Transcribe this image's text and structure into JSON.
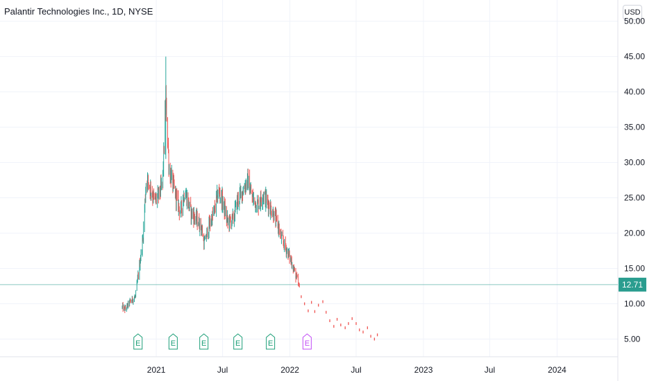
{
  "header": {
    "title": "Palantir Technologies Inc., 1D, NYSE",
    "currency_button": "USD"
  },
  "colors": {
    "up": "#26a69a",
    "down": "#ef5350",
    "earnings_past": "#1b9e77",
    "earnings_future": "#c24cf6",
    "last_price_bg": "#2a9d8f",
    "grid": "#f0f3fa"
  },
  "last_price": {
    "label": "12.71",
    "value": 12.71
  },
  "earnings_markers": {
    "label": "E",
    "past": [
      "2020-11-12",
      "2021-02-16",
      "2021-05-11",
      "2021-08-12",
      "2021-11-09"
    ],
    "future": [
      "2022-02-17"
    ]
  },
  "chart_data": {
    "type": "candlestick",
    "title": "Palantir Technologies Inc., 1D, NYSE",
    "ylim": [
      2.5,
      53
    ],
    "y_ticks": [
      5,
      10,
      15,
      20,
      25,
      30,
      35,
      40,
      45,
      50
    ],
    "y_tick_labels": [
      "5.00",
      "10.00",
      "15.00",
      "20.00",
      "25.00",
      "30.00",
      "35.00",
      "40.00",
      "45.00",
      "50.00"
    ],
    "x_range": [
      "2019-11-01",
      "2024-06-15"
    ],
    "x_ticks": [
      {
        "date": "2021-01-01",
        "label": "2021"
      },
      {
        "date": "2021-07-01",
        "label": "Jul"
      },
      {
        "date": "2022-01-01",
        "label": "2022"
      },
      {
        "date": "2022-07-01",
        "label": "Jul"
      },
      {
        "date": "2023-01-01",
        "label": "2023"
      },
      {
        "date": "2023-07-01",
        "label": "Jul"
      },
      {
        "date": "2024-01-01",
        "label": "2024"
      }
    ],
    "grid": true,
    "projection": {
      "color": "down",
      "style": "dotted",
      "points": [
        [
          "2022-02-01",
          11.0
        ],
        [
          "2022-02-10",
          10.0
        ],
        [
          "2022-02-20",
          9.0
        ],
        [
          "2022-03-01",
          10.2
        ],
        [
          "2022-03-10",
          8.9
        ],
        [
          "2022-03-20",
          9.8
        ],
        [
          "2022-04-01",
          10.3
        ],
        [
          "2022-04-10",
          8.8
        ],
        [
          "2022-04-20",
          7.6
        ],
        [
          "2022-05-01",
          6.8
        ],
        [
          "2022-05-10",
          7.8
        ],
        [
          "2022-05-20",
          7.0
        ],
        [
          "2022-06-01",
          6.6
        ],
        [
          "2022-06-10",
          7.2
        ],
        [
          "2022-06-20",
          7.9
        ],
        [
          "2022-07-01",
          7.2
        ],
        [
          "2022-07-10",
          6.3
        ],
        [
          "2022-07-20",
          6.0
        ],
        [
          "2022-08-01",
          6.6
        ],
        [
          "2022-08-10",
          5.4
        ],
        [
          "2022-08-20",
          5.0
        ],
        [
          "2022-08-28",
          5.6
        ]
      ]
    },
    "waypoints": [
      [
        "2020-09-30",
        9.5
      ],
      [
        "2020-10-08",
        9.2
      ],
      [
        "2020-10-20",
        10.2
      ],
      [
        "2020-11-05",
        11.0
      ],
      [
        "2020-11-15",
        15.0
      ],
      [
        "2020-11-25",
        19.0
      ],
      [
        "2020-12-05",
        28.0
      ],
      [
        "2020-12-15",
        26.5
      ],
      [
        "2020-12-28",
        24.5
      ],
      [
        "2021-01-08",
        25.5
      ],
      [
        "2021-01-18",
        27.0
      ],
      [
        "2021-01-27",
        39.0
      ],
      [
        "2021-02-05",
        29.0
      ],
      [
        "2021-02-15",
        27.0
      ],
      [
        "2021-02-25",
        25.0
      ],
      [
        "2021-03-08",
        23.0
      ],
      [
        "2021-03-20",
        26.0
      ],
      [
        "2021-04-05",
        23.0
      ],
      [
        "2021-04-20",
        22.0
      ],
      [
        "2021-05-03",
        21.0
      ],
      [
        "2021-05-12",
        18.5
      ],
      [
        "2021-05-25",
        21.0
      ],
      [
        "2021-06-08",
        23.0
      ],
      [
        "2021-06-20",
        26.0
      ],
      [
        "2021-07-01",
        24.5
      ],
      [
        "2021-07-15",
        21.5
      ],
      [
        "2021-07-30",
        22.0
      ],
      [
        "2021-08-10",
        24.5
      ],
      [
        "2021-08-25",
        26.0
      ],
      [
        "2021-09-08",
        27.5
      ],
      [
        "2021-09-20",
        25.0
      ],
      [
        "2021-10-05",
        24.0
      ],
      [
        "2021-10-20",
        25.5
      ],
      [
        "2021-11-05",
        24.0
      ],
      [
        "2021-11-15",
        23.0
      ],
      [
        "2021-11-30",
        21.0
      ],
      [
        "2021-12-10",
        19.0
      ],
      [
        "2021-12-20",
        18.0
      ],
      [
        "2022-01-05",
        16.0
      ],
      [
        "2022-01-20",
        13.5
      ],
      [
        "2022-01-28",
        12.0
      ]
    ]
  }
}
